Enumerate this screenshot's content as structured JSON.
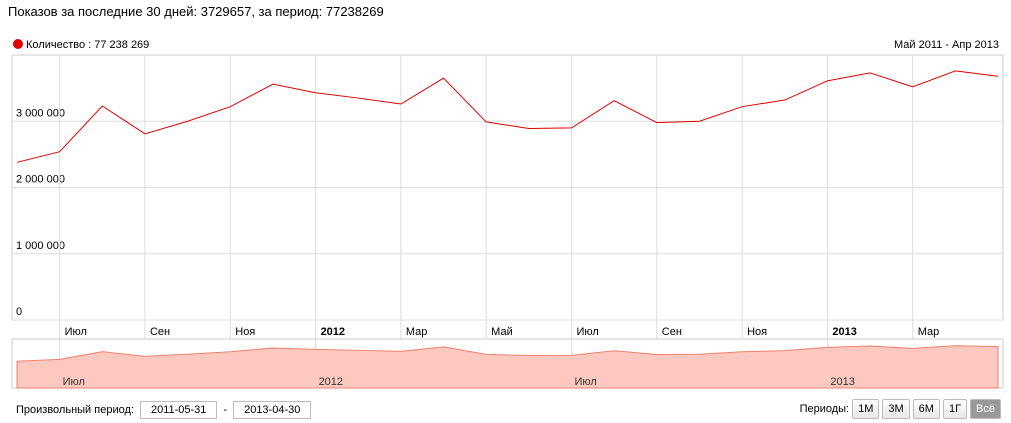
{
  "header": "Показов за последние 30 дней: 3729657, за период: 77238269",
  "chart_data": {
    "type": "line",
    "subtitle": "Май 2011 - Апр 2013",
    "categories": [
      null,
      "Июл",
      null,
      "Сен",
      null,
      "Ноя",
      null,
      "2012",
      null,
      "Мар",
      null,
      "Май",
      null,
      "Июл",
      null,
      "Сен",
      null,
      "Ноя",
      null,
      "2013",
      null,
      "Мар",
      null,
      null
    ],
    "series": [
      {
        "name": "Количество : 77 238 269",
        "color": "#e00000",
        "values": [
          2380000,
          2540000,
          3230000,
          2810000,
          3000000,
          3220000,
          3560000,
          3430000,
          3350000,
          3260000,
          3650000,
          2990000,
          2890000,
          2900000,
          3310000,
          2980000,
          3000000,
          3220000,
          3320000,
          3610000,
          3730000,
          3520000,
          3760000,
          3680000
        ]
      }
    ],
    "ylim": [
      0,
      4000000
    ],
    "yticks": [
      0,
      {
        "value": 1000000,
        "label": "1 000 000"
      },
      {
        "value": 2000000,
        "label": "2 000 000"
      },
      {
        "value": 3000000,
        "label": "3 000 000"
      }
    ],
    "grid": true,
    "navigator_labels": [
      null,
      "Июл",
      null,
      null,
      null,
      null,
      null,
      "2012",
      null,
      null,
      null,
      null,
      null,
      "Июл",
      null,
      null,
      null,
      null,
      null,
      "2013",
      null,
      null,
      null,
      null
    ]
  },
  "controls": {
    "period_label": "Произвольный период:",
    "date_from": "2011-05-31",
    "separator": "-",
    "date_to": "2013-04-30",
    "periods_label": "Периоды:",
    "buttons": [
      "1М",
      "3М",
      "6М",
      "1Г",
      "Всё"
    ],
    "active": 4
  }
}
